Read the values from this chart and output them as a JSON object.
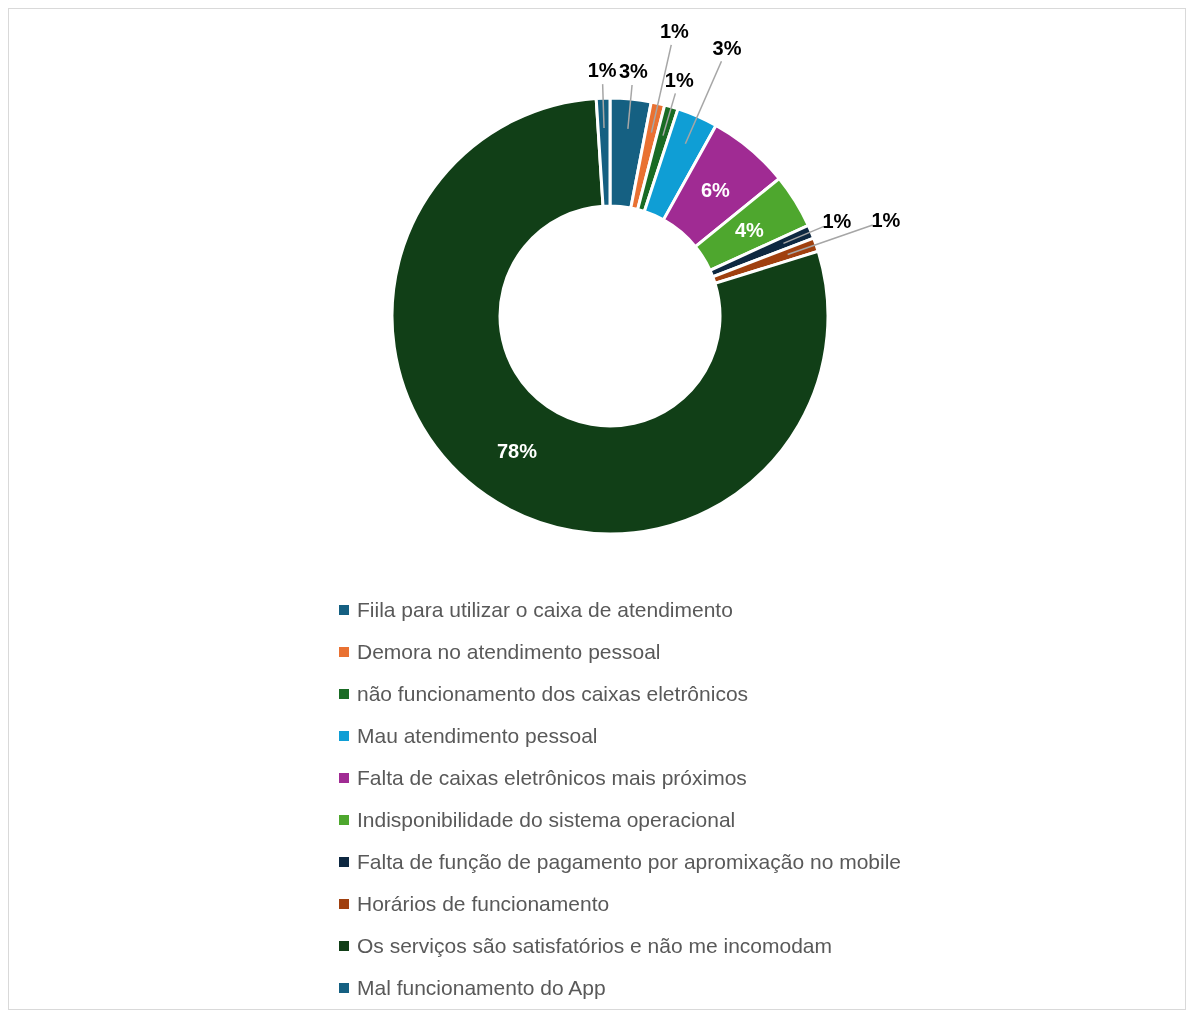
{
  "chart_data": {
    "type": "donut",
    "categories": [
      "Fiila para utilizar o caixa de atendimento",
      "Demora no atendimento pessoal",
      "não funcionamento dos caixas eletrônicos",
      "Mau atendimento pessoal",
      "Falta de caixas eletrônicos mais próximos",
      "Indisponibilidade do sistema operacional",
      "Falta de função de pagamento por apromixação no mobile",
      "Horários de funcionamento",
      "Os serviços são satisfatórios e não me incomodam",
      "Mal funcionamento do App"
    ],
    "values": [
      3,
      1,
      1,
      3,
      6,
      4,
      1,
      1,
      78,
      1
    ],
    "colors": [
      "#156082",
      "#e97132",
      "#196b24",
      "#0f9ed5",
      "#a02b93",
      "#4ea72e",
      "#0e2841",
      "#a0400f",
      "#113f17",
      "#156082"
    ],
    "value_labels": [
      "3%",
      "1%",
      "1%",
      "3%",
      "6%",
      "4%",
      "1%",
      "1%",
      "78%",
      "1%"
    ],
    "legend": "bottom"
  }
}
